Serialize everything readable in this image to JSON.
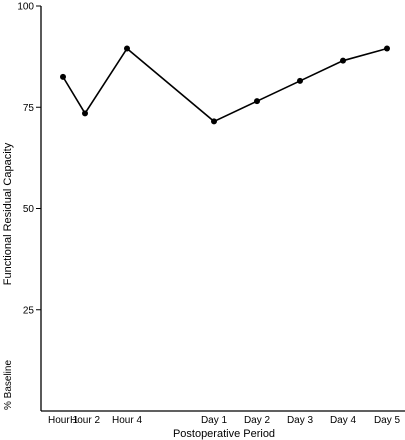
{
  "chart_data": {
    "type": "line",
    "title": "",
    "xlabel": "Postoperative Period",
    "ylabel": "Functional Residual Capacity",
    "ylabel_unit": "% Baseline",
    "categories": [
      "Hour 1",
      "Hour 2",
      "Hour 4",
      "Day 1",
      "Day 2",
      "Day 3",
      "Day 4",
      "Day 5"
    ],
    "segments": [
      [
        0,
        1,
        2,
        3,
        4,
        5,
        6,
        7
      ]
    ],
    "values": [
      82.5,
      73.5,
      89.5,
      71.5,
      76.5,
      81.5,
      86.5,
      89.5
    ],
    "ylim": [
      0,
      100
    ],
    "yticks": [
      25,
      50,
      75,
      100
    ],
    "grid": false,
    "legend": "none"
  }
}
